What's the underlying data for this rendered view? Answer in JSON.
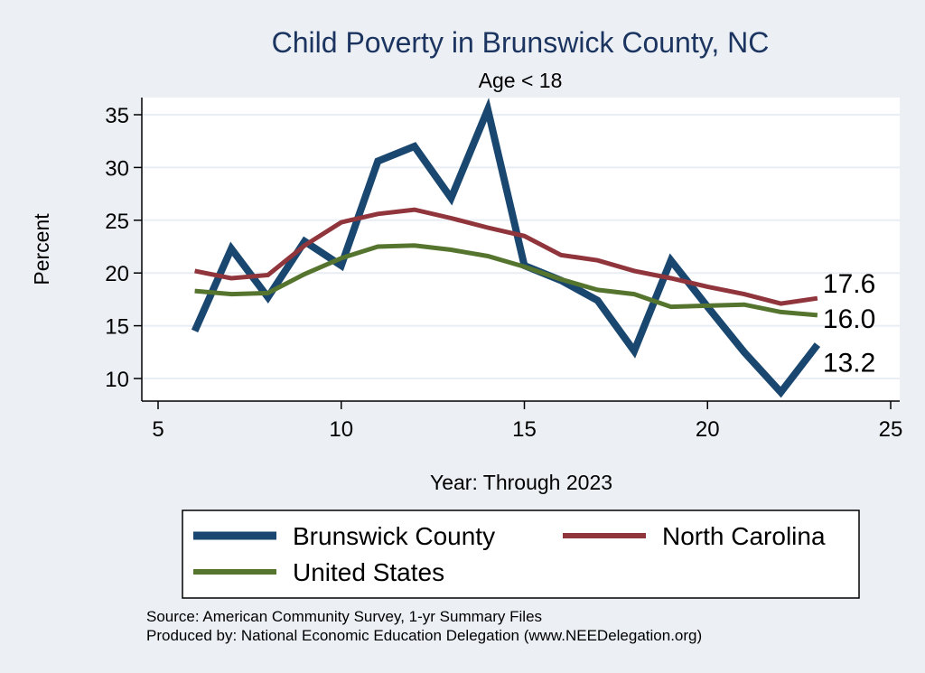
{
  "chart_data": {
    "type": "line",
    "title": "Child Poverty in Brunswick County, NC",
    "subtitle": "Age < 18",
    "xlabel": "Year: Through 2023",
    "ylabel": "Percent",
    "xlim": [
      5,
      25
    ],
    "ylim": [
      8,
      36
    ],
    "xticks": [
      5,
      10,
      15,
      20,
      25
    ],
    "yticks": [
      10,
      15,
      20,
      25,
      30,
      35
    ],
    "grid": true,
    "legend_position": "bottom",
    "series": [
      {
        "name": "Brunswick County",
        "color": "#1a476f",
        "width": 8,
        "x": [
          6,
          7,
          8,
          9,
          10,
          11,
          12,
          13,
          14,
          15,
          16,
          17,
          18,
          19,
          20,
          21,
          22,
          23
        ],
        "values": [
          14.5,
          22.3,
          17.7,
          23.0,
          20.7,
          30.6,
          32.0,
          27.1,
          35.5,
          20.7,
          19.3,
          17.4,
          12.6,
          21.2,
          16.8,
          12.5,
          8.7,
          13.2
        ],
        "end_label": "13.2"
      },
      {
        "name": "North Carolina",
        "color": "#90353b",
        "width": 5,
        "x": [
          6,
          7,
          8,
          9,
          10,
          11,
          12,
          13,
          14,
          15,
          16,
          17,
          18,
          19,
          20,
          21,
          22,
          23
        ],
        "values": [
          20.2,
          19.5,
          19.8,
          22.6,
          24.8,
          25.6,
          26.0,
          25.2,
          24.3,
          23.5,
          21.7,
          21.2,
          20.2,
          19.5,
          18.7,
          18.0,
          17.1,
          17.6
        ],
        "end_label": "17.6"
      },
      {
        "name": "United States",
        "color": "#55752f",
        "width": 5,
        "x": [
          6,
          7,
          8,
          9,
          10,
          11,
          12,
          13,
          14,
          15,
          16,
          17,
          18,
          19,
          20,
          21,
          22,
          23
        ],
        "values": [
          18.3,
          18.0,
          18.1,
          19.9,
          21.4,
          22.5,
          22.6,
          22.2,
          21.6,
          20.6,
          19.4,
          18.4,
          18.0,
          16.8,
          16.9,
          17.0,
          16.3,
          16.0
        ],
        "end_label": "16.0"
      }
    ],
    "notes": [
      "Source: American Community Survey, 1-yr Summary Files",
      "Produced by: National Economic Education Delegation (www.NEEDelegation.org)"
    ]
  }
}
